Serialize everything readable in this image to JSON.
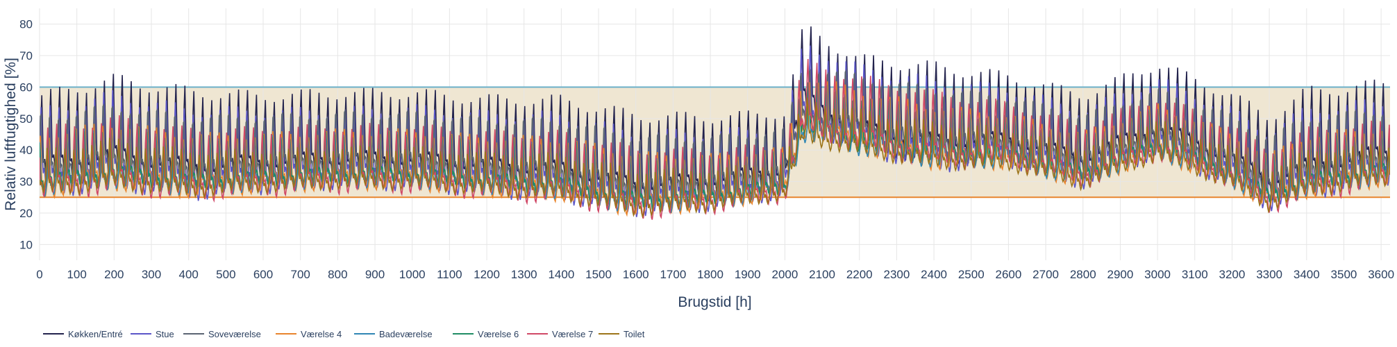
{
  "chart_data": {
    "type": "line",
    "title": "",
    "xlabel": "Brugstid [h]",
    "ylabel": "Relativ luftfugtighed [%]",
    "xlim": [
      0,
      3624
    ],
    "ylim": [
      5,
      85
    ],
    "x_ticks": [
      0,
      100,
      200,
      300,
      400,
      500,
      600,
      700,
      800,
      900,
      1000,
      1100,
      1200,
      1300,
      1400,
      1500,
      1600,
      1700,
      1800,
      1900,
      2000,
      2100,
      2200,
      2300,
      2400,
      2500,
      2600,
      2700,
      2800,
      2900,
      3000,
      3100,
      3200,
      3300,
      3400,
      3500,
      3600
    ],
    "y_ticks": [
      10,
      20,
      30,
      40,
      50,
      60,
      70,
      80
    ],
    "grid": true,
    "legend_position": "bottom-left",
    "comfort_band": {
      "low": 25,
      "high": 60,
      "fill_color": "#efe6d2",
      "low_color": "#e8842c",
      "high_color": "#6bb0c9"
    },
    "x_anchor": [
      0,
      200,
      400,
      600,
      800,
      1000,
      1200,
      1400,
      1600,
      1800,
      2000,
      2050,
      2200,
      2400,
      2600,
      2800,
      3000,
      3200,
      3300,
      3400,
      3600
    ],
    "series": [
      {
        "name": "Køkken/Entré",
        "color": "#23234d",
        "base": [
          40,
          44,
          40,
          41,
          42,
          42,
          40,
          39,
          34,
          35,
          38,
          62,
          52,
          48,
          48,
          42,
          52,
          42,
          35,
          40,
          44
        ],
        "amp": [
          22,
          24,
          24,
          21,
          21,
          21,
          21,
          22,
          22,
          20,
          18,
          22,
          22,
          24,
          20,
          20,
          20,
          20,
          20,
          24,
          22
        ]
      },
      {
        "name": "Stue",
        "color": "#5a55c8",
        "base": [
          36,
          40,
          36,
          37,
          38,
          38,
          36,
          35,
          30,
          31,
          34,
          58,
          50,
          45,
          45,
          38,
          48,
          38,
          31,
          36,
          40
        ],
        "amp": [
          21,
          23,
          22,
          20,
          19,
          20,
          20,
          21,
          20,
          19,
          17,
          21,
          21,
          22,
          19,
          19,
          19,
          19,
          19,
          22,
          20
        ]
      },
      {
        "name": "Soveværelse",
        "color": "#5a6472",
        "base": [
          39,
          42,
          39,
          40,
          41,
          41,
          39,
          38,
          33,
          34,
          37,
          56,
          52,
          48,
          47,
          41,
          49,
          41,
          34,
          39,
          42
        ],
        "amp": [
          16,
          17,
          16,
          15,
          15,
          15,
          15,
          16,
          16,
          14,
          13,
          16,
          16,
          16,
          14,
          14,
          14,
          14,
          14,
          16,
          15
        ]
      },
      {
        "name": "Værelse 4",
        "color": "#e8842c",
        "base": [
          33,
          36,
          33,
          34,
          35,
          35,
          33,
          32,
          27,
          28,
          31,
          52,
          47,
          42,
          41,
          35,
          44,
          35,
          28,
          33,
          36
        ],
        "amp": [
          15,
          16,
          15,
          14,
          14,
          14,
          14,
          15,
          15,
          13,
          12,
          15,
          15,
          15,
          13,
          13,
          13,
          13,
          13,
          15,
          14
        ]
      },
      {
        "name": "Badeværelse",
        "color": "#2f86b4",
        "base": [
          33,
          36,
          33,
          34,
          35,
          35,
          33,
          32,
          27,
          28,
          31,
          50,
          46,
          42,
          41,
          35,
          44,
          35,
          28,
          33,
          36
        ],
        "amp": [
          14,
          15,
          14,
          13,
          13,
          13,
          13,
          14,
          14,
          12,
          11,
          14,
          14,
          14,
          12,
          12,
          12,
          12,
          12,
          14,
          13
        ]
      },
      {
        "name": "Værelse 6",
        "color": "#1f8c64",
        "base": [
          34,
          37,
          34,
          35,
          36,
          36,
          34,
          33,
          28,
          29,
          32,
          52,
          47,
          43,
          42,
          36,
          45,
          36,
          29,
          34,
          37
        ],
        "amp": [
          14,
          15,
          14,
          13,
          13,
          13,
          13,
          14,
          14,
          12,
          11,
          14,
          14,
          14,
          12,
          12,
          12,
          12,
          12,
          14,
          13
        ]
      },
      {
        "name": "Værelse 7",
        "color": "#d04866",
        "base": [
          33,
          36,
          33,
          34,
          35,
          35,
          33,
          32,
          27,
          28,
          31,
          54,
          49,
          44,
          43,
          36,
          45,
          36,
          28,
          33,
          36
        ],
        "amp": [
          17,
          18,
          17,
          16,
          16,
          16,
          16,
          17,
          17,
          15,
          14,
          18,
          18,
          18,
          15,
          15,
          15,
          15,
          15,
          17,
          16
        ]
      },
      {
        "name": "Toilet",
        "color": "#9c7418",
        "base": [
          31,
          34,
          31,
          32,
          33,
          33,
          31,
          30,
          25,
          26,
          29,
          48,
          44,
          40,
          39,
          33,
          42,
          33,
          26,
          31,
          34
        ],
        "amp": [
          11,
          12,
          11,
          10,
          10,
          10,
          10,
          11,
          11,
          10,
          9,
          11,
          11,
          11,
          10,
          10,
          10,
          10,
          10,
          11,
          10
        ]
      }
    ]
  }
}
